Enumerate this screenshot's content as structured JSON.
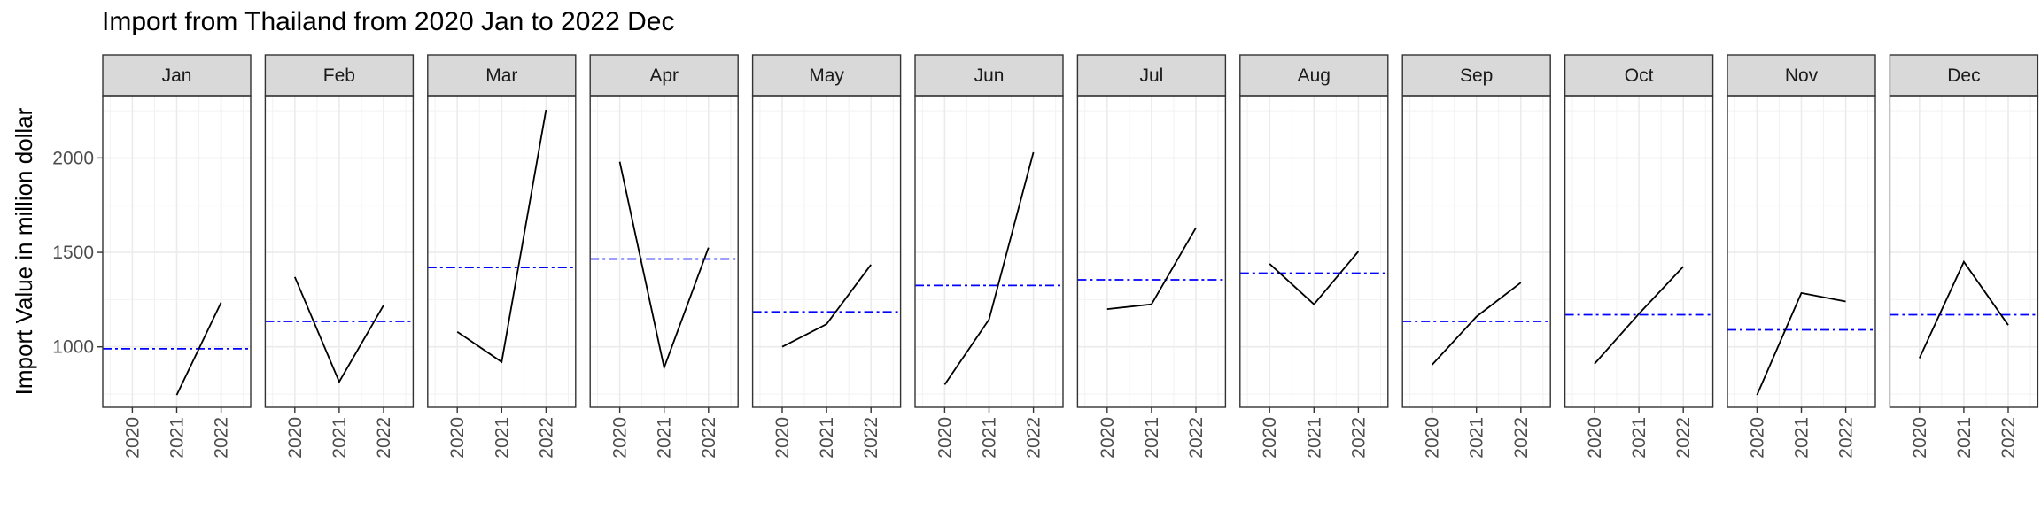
{
  "chart_data": {
    "type": "line",
    "title": "Import from Thailand from 2020 Jan to 2022 Dec",
    "xlabel": "",
    "ylabel": "Import Value in million dollar",
    "facets": [
      "Jan",
      "Feb",
      "Mar",
      "Apr",
      "May",
      "Jun",
      "Jul",
      "Aug",
      "Sep",
      "Oct",
      "Nov",
      "Dec"
    ],
    "x": [
      "2020",
      "2021",
      "2022"
    ],
    "ylim": [
      680,
      2330
    ],
    "yticks": [
      1000,
      1500,
      2000
    ],
    "grid": true,
    "series": [
      {
        "facet": "Jan",
        "values": [
          null,
          745,
          1235
        ],
        "mean": 990
      },
      {
        "facet": "Feb",
        "values": [
          1370,
          815,
          1220
        ],
        "mean": 1135
      },
      {
        "facet": "Mar",
        "values": [
          1080,
          920,
          2255
        ],
        "mean": 1420
      },
      {
        "facet": "Apr",
        "values": [
          1980,
          890,
          1525
        ],
        "mean": 1465
      },
      {
        "facet": "May",
        "values": [
          1000,
          1120,
          1435
        ],
        "mean": 1185
      },
      {
        "facet": "Jun",
        "values": [
          800,
          1145,
          2030
        ],
        "mean": 1325
      },
      {
        "facet": "Jul",
        "values": [
          1200,
          1225,
          1630
        ],
        "mean": 1355
      },
      {
        "facet": "Aug",
        "values": [
          1440,
          1225,
          1505
        ],
        "mean": 1390
      },
      {
        "facet": "Sep",
        "values": [
          905,
          1160,
          1340
        ],
        "mean": 1135
      },
      {
        "facet": "Oct",
        "values": [
          910,
          1175,
          1425
        ],
        "mean": 1170
      },
      {
        "facet": "Nov",
        "values": [
          745,
          1285,
          1240
        ],
        "mean": 1090
      },
      {
        "facet": "Dec",
        "values": [
          940,
          1450,
          1115
        ],
        "mean": 1170
      }
    ],
    "colors": {
      "line": "#000000",
      "mean_line": "#0000ff",
      "grid": "#ebebeb",
      "strip": "#d9d9d9",
      "border": "#333333"
    }
  }
}
